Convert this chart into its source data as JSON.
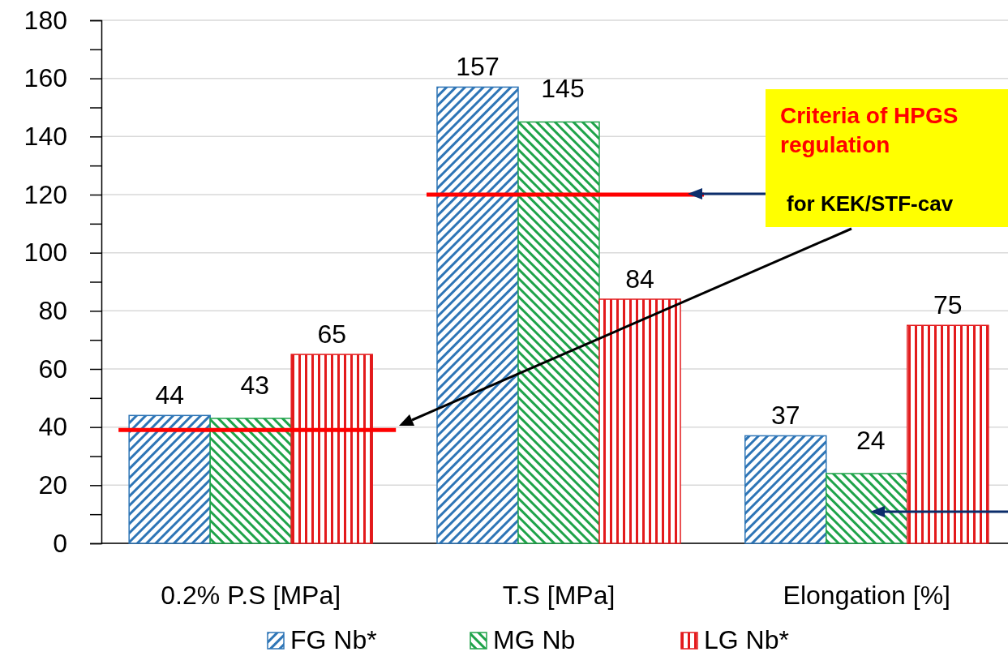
{
  "chart_data": {
    "type": "bar",
    "categories": [
      "0.2% P.S [MPa]",
      "T.S [MPa]",
      "Elongation [%]"
    ],
    "series": [
      {
        "name": "FG Nb*",
        "color": "#2e75b6",
        "values": [
          44,
          157,
          37
        ]
      },
      {
        "name": "MG Nb",
        "color": "#1fa34a",
        "values": [
          43,
          145,
          24
        ]
      },
      {
        "name": "LG Nb*",
        "color": "#e31a1c",
        "values": [
          65,
          84,
          75
        ]
      }
    ],
    "ylim": [
      0,
      180
    ],
    "yticks": [
      0,
      {
        "value": 10,
        "label": null
      },
      20,
      {
        "value": 30,
        "label": null
      },
      40,
      {
        "value": 50,
        "label": null
      },
      60,
      {
        "value": 70,
        "label": null
      },
      80,
      {
        "value": 90,
        "label": null
      },
      100,
      {
        "value": 110,
        "label": null
      },
      120,
      {
        "value": 130,
        "label": null
      },
      140,
      {
        "value": 150,
        "label": null
      },
      160,
      {
        "value": 170,
        "label": null
      },
      180
    ],
    "grid": "y",
    "legend": "bottom",
    "data_labels": true,
    "ref_lines": [
      {
        "axis": "y",
        "value": 39,
        "color": "#ff0000"
      },
      {
        "axis": "y",
        "value": 120,
        "color": "#ff0000"
      }
    ],
    "annotations": [
      "Criteria of HPGS regulation",
      "for KEK/STF-cav"
    ]
  }
}
